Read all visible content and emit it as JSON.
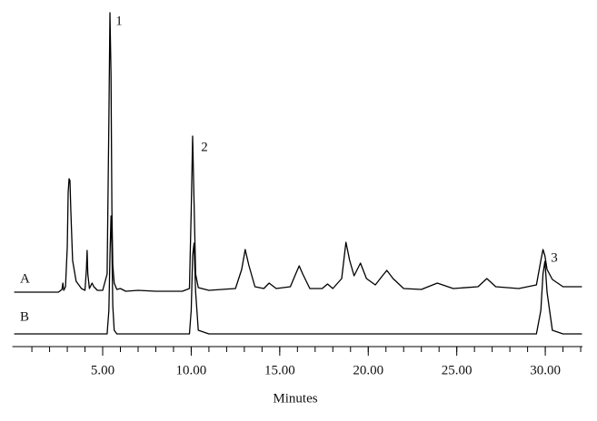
{
  "chart_data": {
    "type": "line",
    "xlabel": "Minutes",
    "xlim": [
      0,
      32.1
    ],
    "ylim": [
      0,
      372
    ],
    "xticks": [
      {
        "value": 5,
        "label": "5.00"
      },
      {
        "value": 10,
        "label": "10.00"
      },
      {
        "value": 15,
        "label": "15.00"
      },
      {
        "value": 20,
        "label": "20.00"
      },
      {
        "value": 25,
        "label": "25.00"
      },
      {
        "value": 30,
        "label": "30.00"
      }
    ],
    "xminor_ticks": [
      1,
      2,
      3,
      4,
      5,
      6,
      7,
      8,
      9,
      10,
      11,
      12,
      13,
      14,
      15,
      16,
      17,
      18,
      19,
      20,
      21,
      22,
      23,
      24,
      25,
      26,
      27,
      28,
      29,
      30,
      31,
      32
    ],
    "annotations": [
      "1",
      "2",
      "3"
    ],
    "x": [
      0,
      2.5,
      2.7,
      2.75,
      2.8,
      2.9,
      3.0,
      3.05,
      3.1,
      3.15,
      3.2,
      3.3,
      3.5,
      3.8,
      4.0,
      4.08,
      4.12,
      4.16,
      4.25,
      4.4,
      4.5,
      4.7,
      5.0,
      5.25,
      5.35,
      5.41,
      5.47,
      5.52,
      5.57,
      5.65,
      5.8,
      6.0,
      6.3,
      7.0,
      8.0,
      9.5,
      9.9,
      10.0,
      10.08,
      10.16,
      10.25,
      10.4,
      11.0,
      12.5,
      12.85,
      13.05,
      13.25,
      13.6,
      14.1,
      14.4,
      14.8,
      15.6,
      15.9,
      16.1,
      16.3,
      16.7,
      17.4,
      17.7,
      18.0,
      18.5,
      18.74,
      18.95,
      19.2,
      19.56,
      19.9,
      20.4,
      20.8,
      21.05,
      21.4,
      22.0,
      23.0,
      23.9,
      24.8,
      26.2,
      26.7,
      27.2,
      28.5,
      29.5,
      29.75,
      29.87,
      29.98,
      30.1,
      30.4,
      31.0,
      32.07
    ],
    "series": [
      {
        "name": "A",
        "color": "#000000",
        "values": [
          60,
          60,
          63,
          70,
          62,
          66,
          110,
          170,
          185,
          183,
          150,
          95,
          72,
          64,
          62,
          85,
          106,
          80,
          64,
          70,
          66,
          62,
          62,
          80,
          250,
          368,
          300,
          150,
          90,
          70,
          63,
          64,
          61,
          62,
          61,
          61,
          64,
          150,
          232,
          160,
          80,
          65,
          62,
          64,
          85,
          107,
          90,
          66,
          64,
          70,
          64,
          66,
          80,
          89,
          80,
          64,
          64,
          69,
          64,
          75,
          115,
          95,
          78,
          92,
          75,
          68,
          78,
          84,
          75,
          64,
          63,
          70,
          64,
          66,
          75,
          66,
          64,
          68,
          95,
          107,
          100,
          85,
          74,
          66,
          66
        ]
      },
      {
        "name": "B",
        "color": "#000000",
        "values": [
          14,
          14,
          14,
          14,
          14,
          14,
          14,
          14,
          14,
          14,
          14,
          14,
          14,
          14,
          14,
          14,
          14,
          14,
          14,
          14,
          14,
          14,
          14,
          14,
          40,
          100,
          144,
          110,
          45,
          18,
          14,
          14,
          14,
          14,
          14,
          14,
          14,
          40,
          100,
          114,
          60,
          18,
          14,
          14,
          14,
          14,
          14,
          14,
          14,
          14,
          14,
          14,
          14,
          14,
          14,
          14,
          14,
          14,
          14,
          14,
          14,
          14,
          14,
          14,
          14,
          14,
          14,
          14,
          14,
          14,
          14,
          14,
          14,
          14,
          14,
          14,
          14,
          14,
          40,
          80,
          94,
          60,
          18,
          14,
          14
        ]
      }
    ]
  }
}
